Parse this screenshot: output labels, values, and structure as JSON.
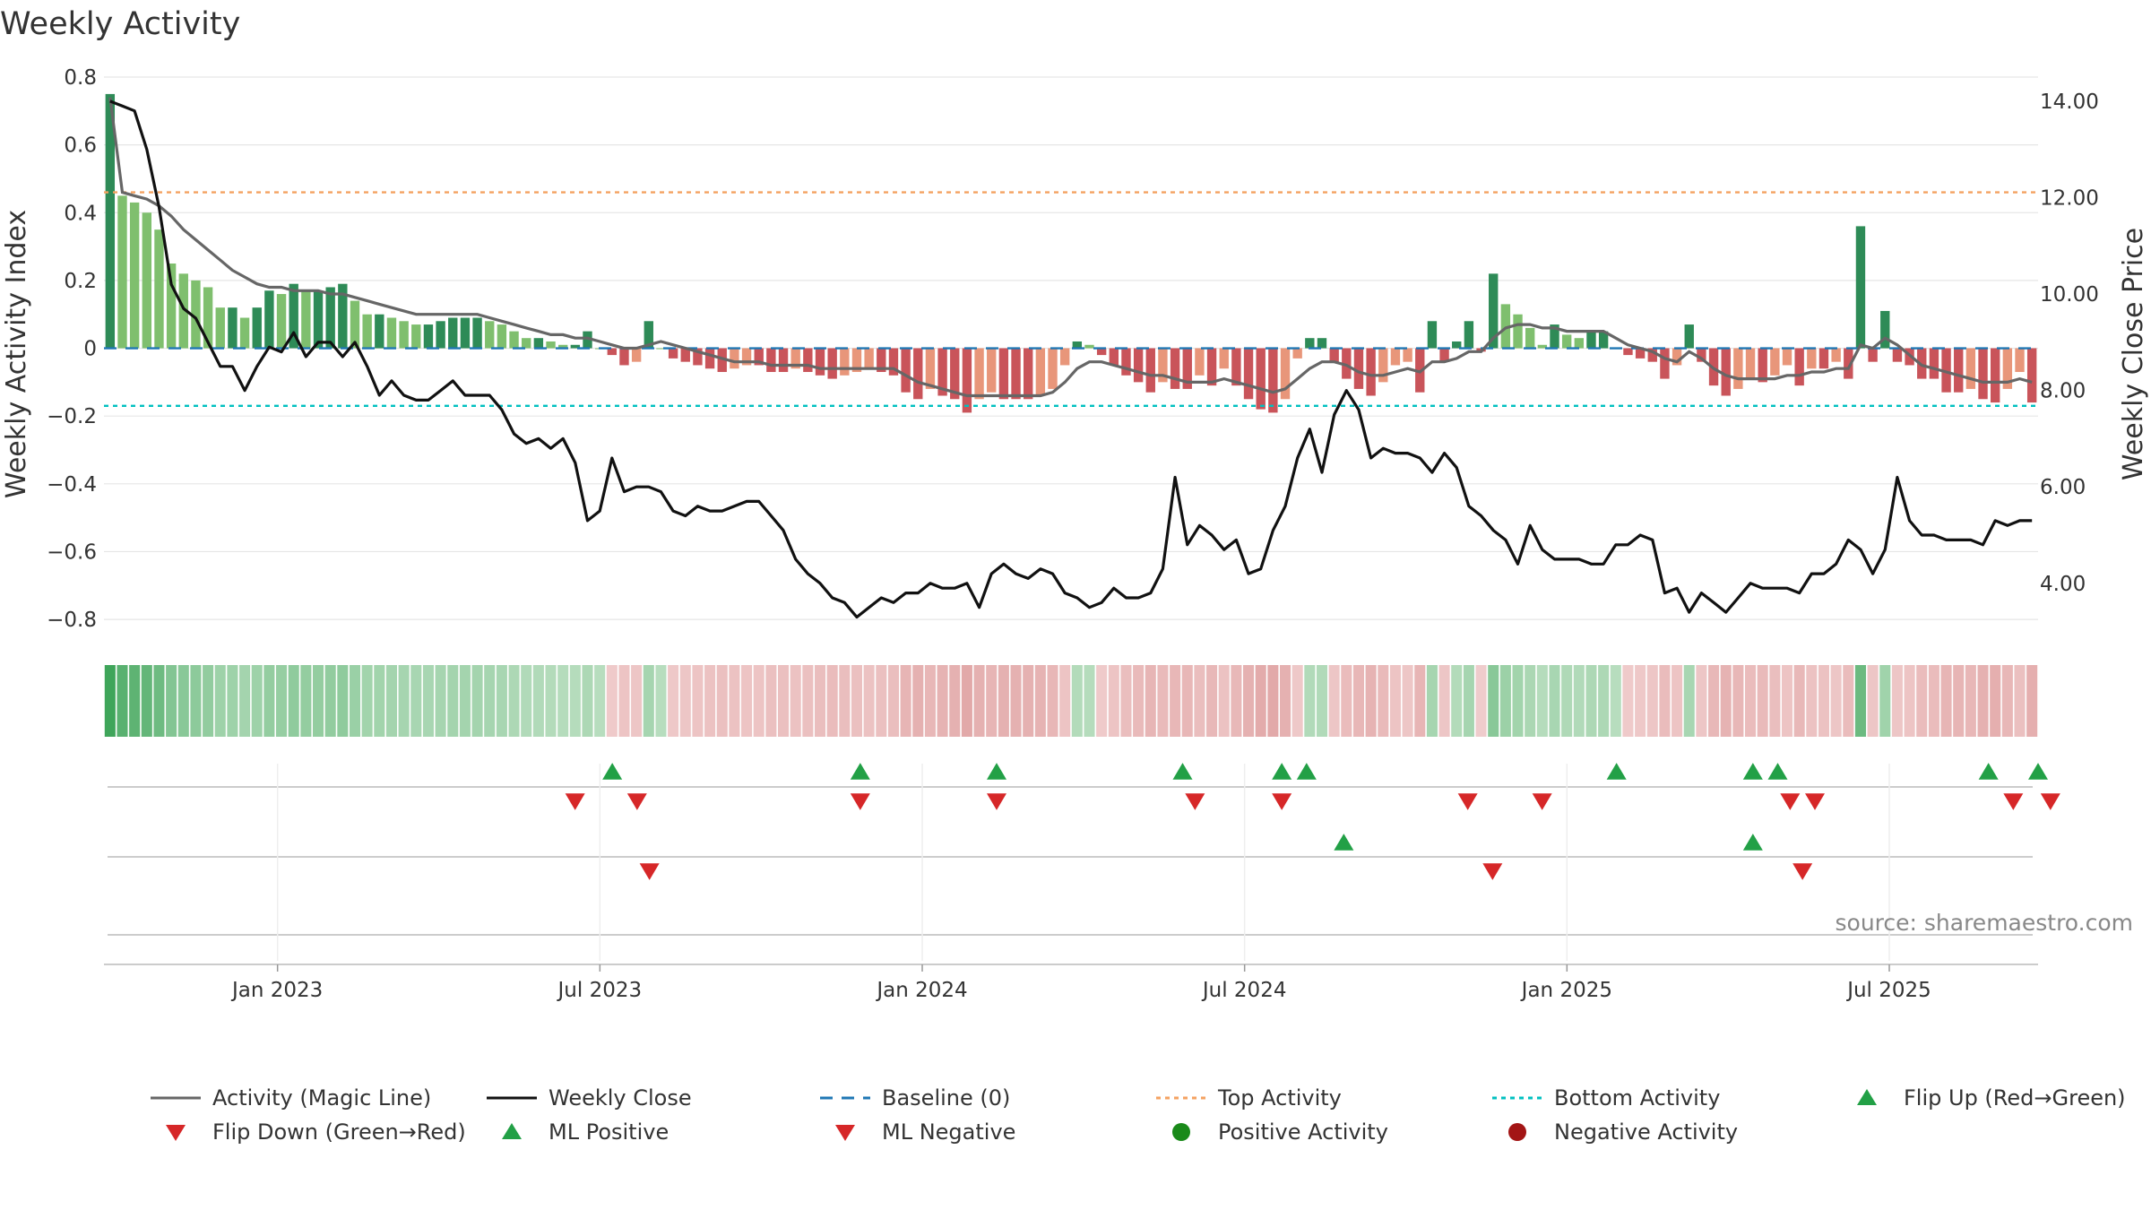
{
  "title": "Weekly Activity",
  "source": "source: sharemaestro.com",
  "colors": {
    "pos_dark": "#2e8b57",
    "pos_light": "#7fbf6e",
    "neg_dark": "#c9545a",
    "neg_light": "#e8967a",
    "magic_line": "#666666",
    "close_line": "#111111",
    "baseline": "#1f77b4",
    "top": "#f4a261",
    "bottom": "#00c0c0",
    "flip_up": "#22a046",
    "flip_down": "#d62728",
    "pos_dot": "#1a8a1a",
    "neg_dot": "#a31515"
  },
  "chart_data": {
    "type": "bar",
    "title": "Weekly Activity",
    "ylabel": "Weekly Activity Index",
    "y2label": "Weekly Close Price",
    "ylim": [
      -0.85,
      0.8
    ],
    "y2lim": [
      2.9,
      14.5
    ],
    "yticks": [
      0.8,
      0.6,
      0.4,
      0.2,
      0,
      -0.2,
      -0.4,
      -0.6,
      -0.8
    ],
    "ytick_labels": [
      "0.8",
      "0.6",
      "0.4",
      "0.2",
      "0",
      "−0.2",
      "−0.4",
      "−0.6",
      "−0.8"
    ],
    "y2ticks": [
      14,
      12,
      10,
      8,
      6,
      4
    ],
    "y2tick_labels": [
      "14.00",
      "12.00",
      "10.00",
      "8.00",
      "6.00",
      "4.00"
    ],
    "x_week_range": [
      0,
      156
    ],
    "xtick_labels": [
      "Jan 2023",
      "Jul 2023",
      "Jan 2024",
      "Jul 2024",
      "Jan 2025",
      "Jul 2025"
    ],
    "xtick_weeks": [
      14,
      40,
      66,
      92,
      118,
      144
    ],
    "top_activity": 0.46,
    "bottom_activity": -0.17,
    "baseline": 0,
    "activity": [
      0.75,
      0.45,
      0.43,
      0.4,
      0.35,
      0.25,
      0.22,
      0.2,
      0.18,
      0.12,
      0.12,
      0.09,
      0.12,
      0.17,
      0.16,
      0.19,
      0.17,
      0.17,
      0.18,
      0.19,
      0.14,
      0.1,
      0.1,
      0.09,
      0.08,
      0.07,
      0.07,
      0.08,
      0.09,
      0.09,
      0.09,
      0.08,
      0.07,
      0.05,
      0.03,
      0.03,
      0.02,
      0.01,
      0.01,
      0.05,
      0.0,
      -0.02,
      -0.05,
      -0.04,
      0.08,
      0.0,
      -0.03,
      -0.04,
      -0.05,
      -0.06,
      -0.07,
      -0.06,
      -0.05,
      -0.05,
      -0.07,
      -0.07,
      -0.06,
      -0.07,
      -0.08,
      -0.09,
      -0.08,
      -0.07,
      -0.06,
      -0.07,
      -0.08,
      -0.13,
      -0.15,
      -0.12,
      -0.14,
      -0.15,
      -0.19,
      -0.15,
      -0.13,
      -0.15,
      -0.15,
      -0.15,
      -0.14,
      -0.12,
      -0.05,
      0.02,
      0.01,
      -0.02,
      -0.05,
      -0.08,
      -0.1,
      -0.13,
      -0.1,
      -0.12,
      -0.12,
      -0.08,
      -0.11,
      -0.06,
      -0.11,
      -0.15,
      -0.18,
      -0.19,
      -0.15,
      -0.03,
      0.03,
      0.03,
      -0.04,
      -0.09,
      -0.12,
      -0.14,
      -0.1,
      -0.05,
      -0.04,
      -0.13,
      0.08,
      -0.04,
      0.02,
      0.08,
      -0.01,
      0.22,
      0.13,
      0.1,
      0.06,
      0.01,
      0.07,
      0.04,
      0.03,
      0.05,
      0.05,
      0.0,
      -0.02,
      -0.03,
      -0.04,
      -0.09,
      -0.05,
      0.07,
      -0.04,
      -0.11,
      -0.14,
      -0.12,
      -0.09,
      -0.1,
      -0.08,
      -0.05,
      -0.11,
      -0.06,
      -0.06,
      -0.04,
      -0.09,
      0.36,
      -0.04,
      0.11,
      -0.04,
      -0.05,
      -0.09,
      -0.09,
      -0.13,
      -0.13,
      -0.12,
      -0.15,
      -0.16,
      -0.12,
      -0.07,
      -0.16
    ],
    "magic_line": [
      0.74,
      0.46,
      0.45,
      0.44,
      0.42,
      0.39,
      0.35,
      0.32,
      0.29,
      0.26,
      0.23,
      0.21,
      0.19,
      0.18,
      0.18,
      0.17,
      0.17,
      0.17,
      0.16,
      0.16,
      0.15,
      0.14,
      0.13,
      0.12,
      0.11,
      0.1,
      0.1,
      0.1,
      0.1,
      0.1,
      0.1,
      0.09,
      0.08,
      0.07,
      0.06,
      0.05,
      0.04,
      0.04,
      0.03,
      0.03,
      0.02,
      0.01,
      0.0,
      0.0,
      0.01,
      0.02,
      0.01,
      0.0,
      -0.01,
      -0.02,
      -0.03,
      -0.04,
      -0.04,
      -0.04,
      -0.05,
      -0.05,
      -0.05,
      -0.05,
      -0.06,
      -0.06,
      -0.06,
      -0.06,
      -0.06,
      -0.06,
      -0.06,
      -0.08,
      -0.1,
      -0.11,
      -0.12,
      -0.13,
      -0.14,
      -0.14,
      -0.14,
      -0.14,
      -0.14,
      -0.14,
      -0.14,
      -0.13,
      -0.1,
      -0.06,
      -0.04,
      -0.04,
      -0.05,
      -0.06,
      -0.07,
      -0.08,
      -0.08,
      -0.09,
      -0.1,
      -0.1,
      -0.1,
      -0.09,
      -0.1,
      -0.11,
      -0.12,
      -0.13,
      -0.12,
      -0.09,
      -0.06,
      -0.04,
      -0.04,
      -0.05,
      -0.07,
      -0.08,
      -0.08,
      -0.07,
      -0.06,
      -0.07,
      -0.04,
      -0.04,
      -0.03,
      -0.01,
      -0.01,
      0.03,
      0.06,
      0.07,
      0.07,
      0.06,
      0.06,
      0.05,
      0.05,
      0.05,
      0.05,
      0.03,
      0.01,
      0.0,
      -0.01,
      -0.03,
      -0.04,
      -0.01,
      -0.03,
      -0.06,
      -0.08,
      -0.09,
      -0.09,
      -0.09,
      -0.09,
      -0.08,
      -0.08,
      -0.07,
      -0.07,
      -0.06,
      -0.06,
      0.01,
      0.0,
      0.03,
      0.01,
      -0.02,
      -0.05,
      -0.06,
      -0.07,
      -0.08,
      -0.09,
      -0.1,
      -0.1,
      -0.1,
      -0.09,
      -0.1
    ]
  },
  "close_series": {
    "values": [
      14.0,
      13.9,
      13.8,
      13.0,
      11.8,
      10.2,
      9.7,
      9.5,
      9.0,
      8.5,
      8.5,
      8.0,
      8.5,
      8.9,
      8.8,
      9.2,
      8.7,
      9.0,
      9.0,
      8.7,
      9.0,
      8.5,
      7.9,
      8.2,
      7.9,
      7.8,
      7.8,
      8.0,
      8.2,
      7.9,
      7.9,
      7.9,
      7.6,
      7.1,
      6.9,
      7.0,
      6.8,
      7.0,
      6.5,
      5.3,
      5.5,
      6.6,
      5.9,
      6.0,
      6.0,
      5.9,
      5.5,
      5.4,
      5.6,
      5.5,
      5.5,
      5.6,
      5.7,
      5.7,
      5.4,
      5.1,
      4.5,
      4.2,
      4.0,
      3.7,
      3.6,
      3.3,
      3.5,
      3.7,
      3.6,
      3.8,
      3.8,
      4.0,
      3.9,
      3.9,
      4.0,
      3.5,
      4.2,
      4.4,
      4.2,
      4.1,
      4.3,
      4.2,
      3.8,
      3.7,
      3.5,
      3.6,
      3.9,
      3.7,
      3.7,
      3.8,
      4.3,
      6.2,
      4.8,
      5.2,
      5.0,
      4.7,
      4.9,
      4.2,
      4.3,
      5.1,
      5.6,
      6.6,
      7.2,
      6.3,
      7.5,
      8.0,
      7.6,
      6.6,
      6.8,
      6.7,
      6.7,
      6.6,
      6.3,
      6.7,
      6.4,
      5.6,
      5.4,
      5.1,
      4.9,
      4.4,
      5.2,
      4.7,
      4.5,
      4.5,
      4.5,
      4.4,
      4.4,
      4.8,
      4.8,
      5.0,
      4.9,
      3.8,
      3.9,
      3.4,
      3.8,
      3.6,
      3.4,
      3.7,
      4.0,
      3.9,
      3.9,
      3.9,
      3.8,
      4.2,
      4.2,
      4.4,
      4.9,
      4.7,
      4.2,
      4.7,
      6.2,
      5.3,
      5.0,
      5.0,
      4.9,
      4.9,
      4.9,
      4.8,
      5.3,
      5.2,
      5.3,
      5.3
    ],
    "line_label": "Weekly Close"
  },
  "signals": {
    "flip_up": [
      41,
      61,
      72,
      87,
      95,
      97,
      122,
      133,
      135,
      152,
      156
    ],
    "flip_down": [
      38,
      43,
      61,
      72,
      88,
      95,
      110,
      116,
      136,
      138,
      154,
      157
    ],
    "ml_positive": [
      100,
      133
    ],
    "ml_negative": [
      44,
      112,
      137
    ]
  },
  "legend": [
    {
      "key": "magic_line",
      "label": "Activity (Magic Line)"
    },
    {
      "key": "weekly_close",
      "label": "Weekly Close"
    },
    {
      "key": "baseline",
      "label": "Baseline (0)"
    },
    {
      "key": "top_activity",
      "label": "Top Activity"
    },
    {
      "key": "bottom_activity",
      "label": "Bottom Activity"
    },
    {
      "key": "flip_up",
      "label": "Flip Up (Red→Green)"
    },
    {
      "key": "flip_down",
      "label": "Flip Down (Green→Red)"
    },
    {
      "key": "ml_positive",
      "label": "ML Positive"
    },
    {
      "key": "ml_negative",
      "label": "ML Negative"
    },
    {
      "key": "positive_activity",
      "label": "Positive Activity"
    },
    {
      "key": "negative_activity",
      "label": "Negative Activity"
    }
  ]
}
